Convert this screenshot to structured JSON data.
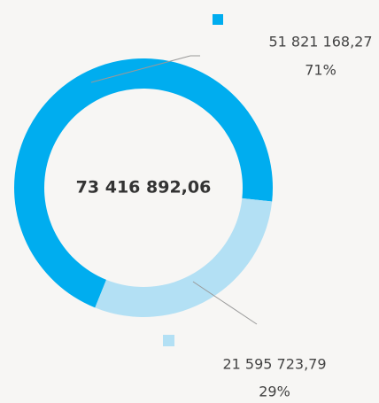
{
  "chart_data": {
    "type": "donut",
    "values": [
      51821168.27,
      21595723.79
    ],
    "value_labels": [
      "51 821 168,27",
      "21 595 723,79"
    ],
    "shares": [
      71,
      29
    ],
    "share_labels": [
      "71%",
      "29%"
    ],
    "colors": [
      "#00adef",
      "#b3e0f4"
    ],
    "total": 73416892.06,
    "total_label": "73 416 892,06"
  }
}
